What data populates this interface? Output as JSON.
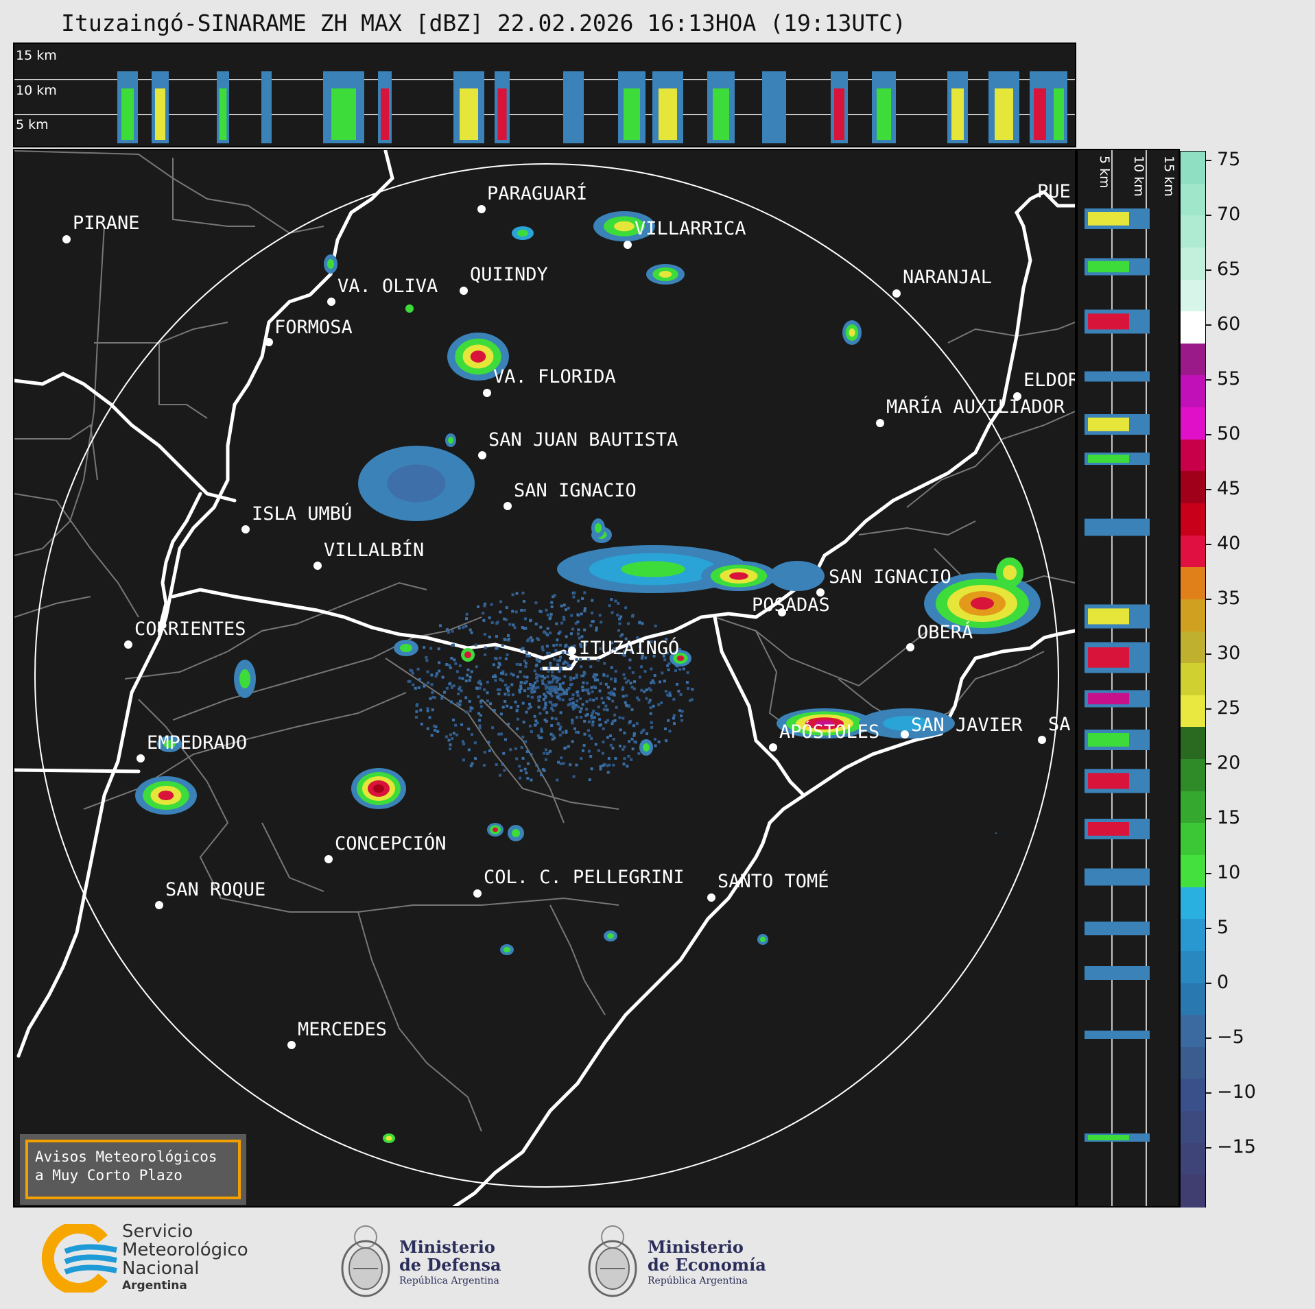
{
  "title": "Ituzaingó-SINARAME ZH MAX [dBZ] 22.02.2026 16:13HOA (19:13UTC)",
  "top_panel": {
    "height_labels": [
      "15 km",
      "10 km",
      "5 km"
    ]
  },
  "side_panel": {
    "height_labels": [
      "5 km",
      "10 km",
      "15 km"
    ]
  },
  "colorbar": {
    "unit": "dBZ",
    "ticks": [
      "75",
      "70",
      "65",
      "60",
      "55",
      "50",
      "45",
      "40",
      "35",
      "30",
      "25",
      "20",
      "15",
      "10",
      "5",
      "0",
      "−5",
      "−10",
      "−15"
    ]
  },
  "cities": [
    {
      "name": "PARAGUARÍ"
    },
    {
      "name": "VILLARRICA"
    },
    {
      "name": "PIRANE"
    },
    {
      "name": "QUIINDY"
    },
    {
      "name": "VA. OLIVA"
    },
    {
      "name": "FORMOSA"
    },
    {
      "name": "NARANJAL"
    },
    {
      "name": "VA. FLORIDA"
    },
    {
      "name": "ELDOR"
    },
    {
      "name": "MARÍA AUXILIADOR"
    },
    {
      "name": "SAN JUAN BAUTISTA"
    },
    {
      "name": "SAN IGNACIO"
    },
    {
      "name": "ISLA UMBÚ"
    },
    {
      "name": "VILLALBÍN"
    },
    {
      "name": "SAN IGNACIO"
    },
    {
      "name": "POSADAS"
    },
    {
      "name": "CORRIENTES"
    },
    {
      "name": "ITUZAINGÓ"
    },
    {
      "name": "OBERÁ"
    },
    {
      "name": "EMPEDRADO"
    },
    {
      "name": "APÓSTOLES"
    },
    {
      "name": "SAN JAVIER"
    },
    {
      "name": "SA"
    },
    {
      "name": "CONCEPCIÓN"
    },
    {
      "name": "SAN ROQUE"
    },
    {
      "name": "COL. C. PELLEGRINI"
    },
    {
      "name": "SANTO TOMÉ"
    },
    {
      "name": "MERCEDES"
    },
    {
      "name": "PUE"
    }
  ],
  "warning_box": {
    "line1": "Avisos Meteorológicos",
    "line2": "a Muy Corto Plazo"
  },
  "footer": {
    "smn": {
      "line1": "Servicio",
      "line2": "Meteorológico",
      "line3": "Nacional",
      "line4": "Argentina"
    },
    "defensa": {
      "line1": "Ministerio",
      "line2": "de Defensa",
      "line3": "República Argentina"
    },
    "economia": {
      "line1": "Ministerio",
      "line2": "de Economía",
      "line3": "República Argentina"
    }
  },
  "colors": {
    "background": "#1a1a1a",
    "border_white": "#ffffff",
    "admin_border": "#777777",
    "warning_border": "#f2a000"
  }
}
